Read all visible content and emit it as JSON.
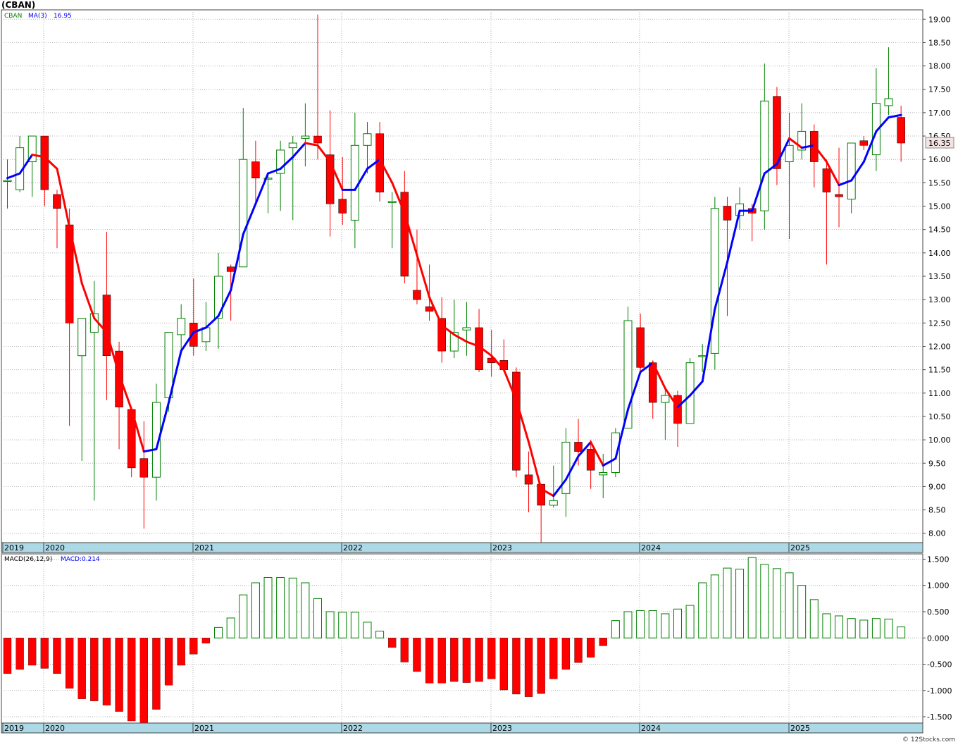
{
  "title": "(CBAN)",
  "watermark": "© 12Stocks.com",
  "colors": {
    "up": "#008000",
    "down": "#ff0000",
    "ma_up": "#0000ff",
    "ma_down": "#ff0000",
    "axis_band": "#add8e6",
    "grid": "#b0b0b0",
    "last_label_bg": "#f4e3e3"
  },
  "chart_data": [
    {
      "type": "candlestick",
      "interval": "monthly",
      "legend": {
        "symbol": "CBAN",
        "ma_label": "MA(3)",
        "ma_value": "16.95"
      },
      "last_price_label": "16.35",
      "ylim": [
        7.8,
        19.2
      ],
      "y_ticks": [
        "8.00",
        "8.50",
        "9.00",
        "9.50",
        "10.00",
        "10.50",
        "11.00",
        "11.50",
        "12.00",
        "12.50",
        "13.00",
        "13.50",
        "14.00",
        "14.50",
        "15.00",
        "15.50",
        "16.00",
        "16.50",
        "17.00",
        "17.50",
        "18.00",
        "18.50",
        "19.00"
      ],
      "x_labels": [
        "2019",
        "2020",
        "2021",
        "2022",
        "2023",
        "2024",
        "2025"
      ],
      "candles": [
        {
          "date": "2019-11",
          "o": 15.55,
          "h": 16.0,
          "l": 14.95,
          "c": 15.55
        },
        {
          "date": "2019-12",
          "o": 15.35,
          "h": 16.5,
          "l": 15.3,
          "c": 16.25
        },
        {
          "date": "2020-01",
          "o": 15.95,
          "h": 16.5,
          "l": 15.2,
          "c": 16.5
        },
        {
          "date": "2020-02",
          "o": 16.5,
          "h": 16.5,
          "l": 15.0,
          "c": 15.35
        },
        {
          "date": "2020-03",
          "o": 15.25,
          "h": 15.35,
          "l": 14.1,
          "c": 14.95
        },
        {
          "date": "2020-04",
          "o": 14.6,
          "h": 14.95,
          "l": 10.3,
          "c": 12.5
        },
        {
          "date": "2020-05",
          "o": 11.8,
          "h": 12.6,
          "l": 9.55,
          "c": 12.6
        },
        {
          "date": "2020-06",
          "o": 12.3,
          "h": 13.4,
          "l": 8.7,
          "c": 12.7
        },
        {
          "date": "2020-07",
          "o": 13.1,
          "h": 14.45,
          "l": 10.85,
          "c": 11.8
        },
        {
          "date": "2020-08",
          "o": 11.9,
          "h": 12.1,
          "l": 9.8,
          "c": 10.7
        },
        {
          "date": "2020-09",
          "o": 10.65,
          "h": 10.7,
          "l": 9.2,
          "c": 9.4
        },
        {
          "date": "2020-10",
          "o": 9.6,
          "h": 10.4,
          "l": 8.1,
          "c": 9.2
        },
        {
          "date": "2020-11",
          "o": 9.2,
          "h": 11.2,
          "l": 8.7,
          "c": 10.8
        },
        {
          "date": "2020-12",
          "o": 10.9,
          "h": 12.3,
          "l": 10.6,
          "c": 12.3
        },
        {
          "date": "2021-01",
          "o": 12.25,
          "h": 12.9,
          "l": 11.9,
          "c": 12.6
        },
        {
          "date": "2021-02",
          "o": 12.5,
          "h": 13.45,
          "l": 11.8,
          "c": 12.0
        },
        {
          "date": "2021-03",
          "o": 12.1,
          "h": 12.95,
          "l": 11.9,
          "c": 12.4
        },
        {
          "date": "2021-04",
          "o": 12.6,
          "h": 14.0,
          "l": 11.95,
          "c": 13.5
        },
        {
          "date": "2021-05",
          "o": 13.7,
          "h": 13.75,
          "l": 12.55,
          "c": 13.6
        },
        {
          "date": "2021-06",
          "o": 13.7,
          "h": 17.1,
          "l": 13.7,
          "c": 16.0
        },
        {
          "date": "2021-07",
          "o": 15.95,
          "h": 16.4,
          "l": 15.05,
          "c": 15.6
        },
        {
          "date": "2021-08",
          "o": 15.6,
          "h": 15.7,
          "l": 14.85,
          "c": 15.6
        },
        {
          "date": "2021-09",
          "o": 15.7,
          "h": 16.4,
          "l": 14.9,
          "c": 16.2
        },
        {
          "date": "2021-10",
          "o": 16.25,
          "h": 16.5,
          "l": 14.7,
          "c": 16.35
        },
        {
          "date": "2021-11",
          "o": 16.45,
          "h": 17.2,
          "l": 15.85,
          "c": 16.5
        },
        {
          "date": "2021-12",
          "o": 16.5,
          "h": 19.1,
          "l": 16.0,
          "c": 16.35
        },
        {
          "date": "2022-01",
          "o": 16.1,
          "h": 17.05,
          "l": 14.35,
          "c": 15.05
        },
        {
          "date": "2022-02",
          "o": 15.15,
          "h": 16.05,
          "l": 14.6,
          "c": 14.85
        },
        {
          "date": "2022-03",
          "o": 14.7,
          "h": 17.0,
          "l": 14.1,
          "c": 16.3
        },
        {
          "date": "2022-04",
          "o": 16.3,
          "h": 16.8,
          "l": 15.7,
          "c": 16.55
        },
        {
          "date": "2022-05",
          "o": 16.55,
          "h": 16.8,
          "l": 15.1,
          "c": 15.3
        },
        {
          "date": "2022-06",
          "o": 15.1,
          "h": 15.3,
          "l": 14.1,
          "c": 15.1
        },
        {
          "date": "2022-07",
          "o": 15.3,
          "h": 15.75,
          "l": 13.35,
          "c": 13.5
        },
        {
          "date": "2022-08",
          "o": 13.2,
          "h": 14.5,
          "l": 12.9,
          "c": 13.0
        },
        {
          "date": "2022-09",
          "o": 12.85,
          "h": 13.75,
          "l": 12.55,
          "c": 12.75
        },
        {
          "date": "2022-10",
          "o": 12.6,
          "h": 13.05,
          "l": 11.65,
          "c": 11.9
        },
        {
          "date": "2022-11",
          "o": 11.9,
          "h": 13.0,
          "l": 11.75,
          "c": 12.3
        },
        {
          "date": "2022-12",
          "o": 12.35,
          "h": 12.95,
          "l": 11.8,
          "c": 12.4
        },
        {
          "date": "2023-01",
          "o": 12.4,
          "h": 12.8,
          "l": 11.45,
          "c": 11.5
        },
        {
          "date": "2023-02",
          "o": 11.75,
          "h": 12.35,
          "l": 11.35,
          "c": 11.65
        },
        {
          "date": "2023-03",
          "o": 11.7,
          "h": 12.15,
          "l": 11.45,
          "c": 11.5
        },
        {
          "date": "2023-04",
          "o": 11.45,
          "h": 11.55,
          "l": 9.2,
          "c": 9.35
        },
        {
          "date": "2023-05",
          "o": 9.25,
          "h": 9.75,
          "l": 8.45,
          "c": 9.05
        },
        {
          "date": "2023-06",
          "o": 9.05,
          "h": 9.05,
          "l": 7.8,
          "c": 8.6
        },
        {
          "date": "2023-07",
          "o": 8.6,
          "h": 9.45,
          "l": 8.55,
          "c": 8.7
        },
        {
          "date": "2023-08",
          "o": 8.85,
          "h": 10.25,
          "l": 8.35,
          "c": 9.95
        },
        {
          "date": "2023-09",
          "o": 9.95,
          "h": 10.45,
          "l": 9.45,
          "c": 9.75
        },
        {
          "date": "2023-10",
          "o": 9.8,
          "h": 10.0,
          "l": 8.95,
          "c": 9.35
        },
        {
          "date": "2023-11",
          "o": 9.25,
          "h": 9.7,
          "l": 8.75,
          "c": 9.3
        },
        {
          "date": "2023-12",
          "o": 9.3,
          "h": 10.25,
          "l": 9.2,
          "c": 10.15
        },
        {
          "date": "2024-01",
          "o": 10.25,
          "h": 12.85,
          "l": 10.25,
          "c": 12.55
        },
        {
          "date": "2024-02",
          "o": 12.4,
          "h": 12.7,
          "l": 11.45,
          "c": 11.55
        },
        {
          "date": "2024-03",
          "o": 11.65,
          "h": 11.7,
          "l": 10.45,
          "c": 10.8
        },
        {
          "date": "2024-04",
          "o": 10.8,
          "h": 11.1,
          "l": 10.0,
          "c": 10.95
        },
        {
          "date": "2024-05",
          "o": 10.95,
          "h": 11.05,
          "l": 9.85,
          "c": 10.35
        },
        {
          "date": "2024-06",
          "o": 10.35,
          "h": 11.75,
          "l": 10.35,
          "c": 11.65
        },
        {
          "date": "2024-07",
          "o": 11.8,
          "h": 12.05,
          "l": 11.45,
          "c": 11.8
        },
        {
          "date": "2024-08",
          "o": 11.85,
          "h": 15.2,
          "l": 11.5,
          "c": 14.95
        },
        {
          "date": "2024-09",
          "o": 15.0,
          "h": 15.2,
          "l": 12.65,
          "c": 14.7
        },
        {
          "date": "2024-10",
          "o": 14.8,
          "h": 15.4,
          "l": 14.5,
          "c": 15.05
        },
        {
          "date": "2024-11",
          "o": 14.95,
          "h": 15.05,
          "l": 14.25,
          "c": 14.85
        },
        {
          "date": "2024-12",
          "o": 14.9,
          "h": 18.05,
          "l": 14.5,
          "c": 17.25
        },
        {
          "date": "2025-01",
          "o": 17.35,
          "h": 17.55,
          "l": 15.45,
          "c": 15.8
        },
        {
          "date": "2025-02",
          "o": 15.95,
          "h": 17.0,
          "l": 14.3,
          "c": 16.3
        },
        {
          "date": "2025-03",
          "o": 16.2,
          "h": 17.2,
          "l": 16.0,
          "c": 16.6
        },
        {
          "date": "2025-04",
          "o": 16.6,
          "h": 16.75,
          "l": 15.4,
          "c": 15.95
        },
        {
          "date": "2025-05",
          "o": 15.8,
          "h": 16.0,
          "l": 13.75,
          "c": 15.3
        },
        {
          "date": "2025-06",
          "o": 15.25,
          "h": 16.25,
          "l": 14.55,
          "c": 15.2
        },
        {
          "date": "2025-07",
          "o": 15.15,
          "h": 16.35,
          "l": 14.85,
          "c": 16.35
        },
        {
          "date": "2025-08",
          "o": 16.4,
          "h": 16.5,
          "l": 16.2,
          "c": 16.3
        },
        {
          "date": "2025-09",
          "o": 16.1,
          "h": 17.95,
          "l": 15.75,
          "c": 17.2
        },
        {
          "date": "2025-10",
          "o": 17.15,
          "h": 18.4,
          "l": 16.95,
          "c": 17.3
        },
        {
          "date": "2025-11",
          "o": 16.9,
          "h": 17.15,
          "l": 15.95,
          "c": 16.35
        }
      ],
      "ma": [
        15.6,
        15.7,
        16.1,
        16.05,
        15.8,
        14.55,
        13.35,
        12.6,
        12.3,
        11.4,
        10.65,
        9.75,
        9.8,
        10.8,
        11.9,
        12.3,
        12.4,
        12.65,
        13.2,
        14.4,
        15.05,
        15.7,
        15.8,
        16.05,
        16.35,
        16.3,
        15.95,
        15.35,
        15.35,
        15.8,
        16.0,
        15.5,
        14.85,
        13.95,
        13.05,
        12.45,
        12.25,
        12.1,
        12.0,
        11.8,
        11.5,
        10.85,
        9.95,
        8.95,
        8.8,
        9.15,
        9.65,
        9.95,
        9.45,
        9.6,
        10.65,
        11.45,
        11.65,
        11.1,
        10.7,
        10.95,
        11.25,
        12.8,
        13.8,
        14.9,
        14.9,
        15.7,
        15.9,
        16.45,
        16.25,
        16.3,
        15.95,
        15.45,
        15.55,
        15.95,
        16.6,
        16.9,
        16.95
      ]
    },
    {
      "type": "bar",
      "name": "MACD(26,12,9)",
      "legend_value": "MACD:0.214",
      "ylim": [
        -1.62,
        1.6
      ],
      "y_ticks": [
        "-1.500",
        "-1.000",
        "-0.500",
        "0.000",
        "0.500",
        "1.000",
        "1.500"
      ],
      "x_labels": [
        "2019",
        "2020",
        "2021",
        "2022",
        "2023",
        "2024",
        "2025"
      ],
      "values": [
        -0.68,
        -0.6,
        -0.52,
        -0.58,
        -0.68,
        -0.96,
        -1.16,
        -1.2,
        -1.28,
        -1.4,
        -1.58,
        -1.62,
        -1.36,
        -0.9,
        -0.52,
        -0.31,
        -0.1,
        0.2,
        0.38,
        0.82,
        1.05,
        1.15,
        1.15,
        1.14,
        1.05,
        0.75,
        0.5,
        0.49,
        0.49,
        0.3,
        0.13,
        -0.18,
        -0.46,
        -0.64,
        -0.86,
        -0.86,
        -0.83,
        -0.85,
        -0.83,
        -0.78,
        -0.99,
        -1.07,
        -1.12,
        -1.06,
        -0.78,
        -0.6,
        -0.47,
        -0.37,
        -0.15,
        0.33,
        0.5,
        0.52,
        0.52,
        0.46,
        0.55,
        0.62,
        1.05,
        1.2,
        1.33,
        1.31,
        1.53,
        1.4,
        1.32,
        1.24,
        1.0,
        0.73,
        0.46,
        0.42,
        0.37,
        0.34,
        0.37,
        0.36,
        0.21
      ]
    }
  ]
}
